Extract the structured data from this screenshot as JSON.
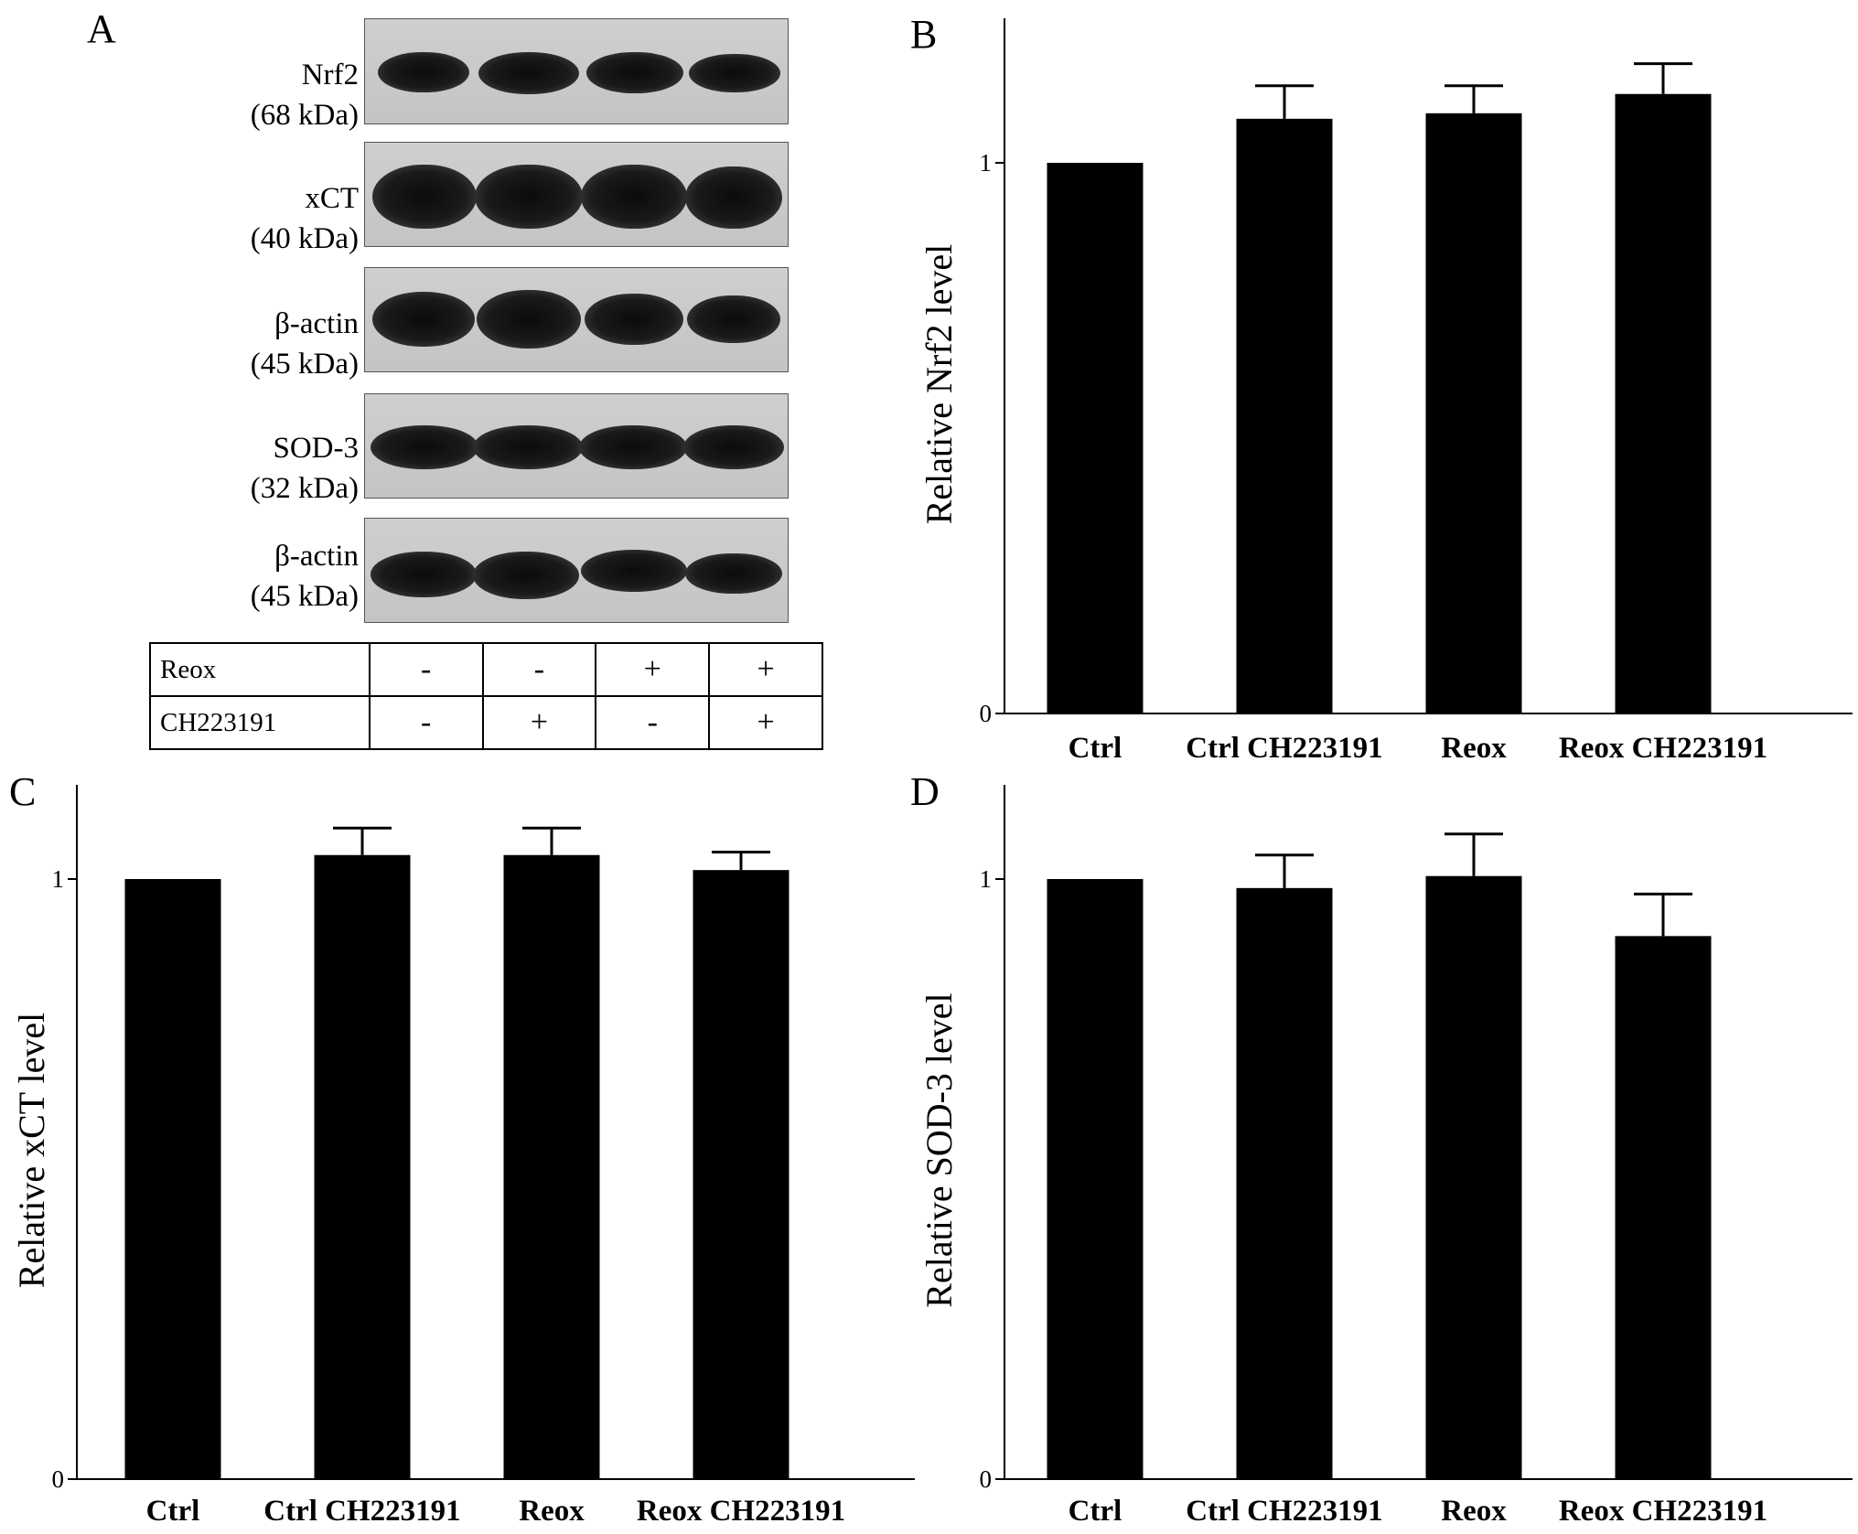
{
  "panel_letters": [
    "A",
    "B",
    "C",
    "D"
  ],
  "blot": {
    "rows": [
      {
        "protein": "Nrf2",
        "weight": "(68 kDa)"
      },
      {
        "protein": "xCT",
        "weight": "(40 kDa)"
      },
      {
        "protein": "β-actin",
        "weight": "(45 kDa)"
      },
      {
        "protein": "SOD-3",
        "weight": "(32 kDa)"
      },
      {
        "protein": "β-actin",
        "weight": "(45 kDa)"
      }
    ],
    "treatments": [
      {
        "label": "Reox",
        "signs": [
          "-",
          "-",
          "+",
          "+"
        ]
      },
      {
        "label": "CH223191",
        "signs": [
          "-",
          "+",
          "-",
          "+"
        ]
      }
    ]
  },
  "chart_data": [
    {
      "type": "bar",
      "panel": "B",
      "categories": [
        "Ctrl",
        "Ctrl CH223191",
        "Reox",
        "Reox CH223191"
      ],
      "values": [
        1.0,
        1.08,
        1.09,
        1.125
      ],
      "errors": [
        0,
        0.06,
        0.05,
        0.055
      ],
      "xlabel": "",
      "ylabel": "Relative Nrf2 level",
      "yticks": [
        0,
        1
      ],
      "ylim": [
        0,
        1.25
      ],
      "bar_color": "#000000"
    },
    {
      "type": "bar",
      "panel": "C",
      "categories": [
        "Ctrl",
        "Ctrl CH223191",
        "Reox",
        "Reox CH223191"
      ],
      "values": [
        1.0,
        1.04,
        1.04,
        1.015
      ],
      "errors": [
        0,
        0.045,
        0.045,
        0.03
      ],
      "xlabel": "",
      "ylabel": "Relative xCT level",
      "yticks": [
        0,
        1
      ],
      "ylim": [
        0,
        1.15
      ],
      "bar_color": "#000000"
    },
    {
      "type": "bar",
      "panel": "D",
      "categories": [
        "Ctrl",
        "Ctrl CH223191",
        "Reox",
        "Reox CH223191"
      ],
      "values": [
        1.0,
        0.985,
        1.005,
        0.905
      ],
      "errors": [
        0,
        0.055,
        0.07,
        0.07
      ],
      "xlabel": "",
      "ylabel": "Relative SOD-3 level",
      "yticks": [
        0,
        1
      ],
      "ylim": [
        0,
        1.15
      ],
      "bar_color": "#000000"
    }
  ]
}
